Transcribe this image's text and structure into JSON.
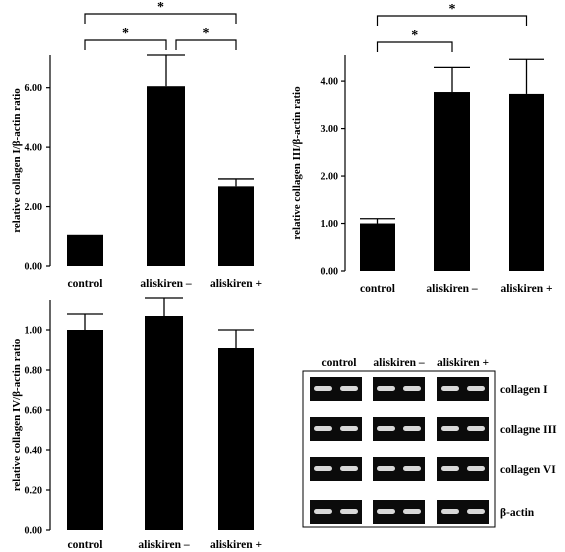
{
  "chart_data": [
    {
      "type": "bar",
      "categories": [
        "control",
        "aliskiren –",
        "aliskiren +"
      ],
      "values": [
        1.05,
        6.05,
        2.68
      ],
      "errors": [
        0.0,
        1.05,
        0.25
      ],
      "ylabel": "relative collagen I/β-actin ratio",
      "ylim": [
        0,
        7.1
      ],
      "yticks": [
        0,
        2,
        4,
        6
      ],
      "ytick_labels": [
        "0.00",
        "2.00",
        "4.00",
        "6.00"
      ],
      "significance": [
        {
          "from": 1,
          "to": 2,
          "label": "*",
          "level": 1
        },
        {
          "from": 0,
          "to": 1,
          "label": "*",
          "level": 1
        },
        {
          "from": 0,
          "to": 2,
          "label": "*",
          "level": 2
        }
      ]
    },
    {
      "type": "bar",
      "categories": [
        "control",
        "aliskiren –",
        "aliskiren +"
      ],
      "values": [
        1.0,
        3.77,
        3.73
      ],
      "errors": [
        0.1,
        0.52,
        0.73
      ],
      "ylabel": "relative collagen III/β-actin ratio",
      "ylim": [
        0,
        4.55
      ],
      "yticks": [
        0,
        1,
        2,
        3,
        4
      ],
      "ytick_labels": [
        "0.00",
        "1.00",
        "2.00",
        "3.00",
        "4.00"
      ],
      "significance": [
        {
          "from": 0,
          "to": 1,
          "label": "*",
          "level": 1
        },
        {
          "from": 0,
          "to": 2,
          "label": "*",
          "level": 2
        }
      ]
    },
    {
      "type": "bar",
      "categories": [
        "control",
        "aliskiren –",
        "aliskiren +"
      ],
      "values": [
        1.0,
        1.07,
        0.91
      ],
      "errors": [
        0.08,
        0.09,
        0.09
      ],
      "ylabel": "relative collagen IV/β-actin ratio",
      "ylim": [
        0,
        1.15
      ],
      "yticks": [
        0,
        0.2,
        0.4,
        0.6,
        0.8,
        1.0
      ],
      "ytick_labels": [
        "0.00",
        "0.20",
        "0.40",
        "0.60",
        "0.80",
        "1.00"
      ],
      "significance": []
    }
  ],
  "gel": {
    "lanes": [
      "control",
      "aliskiren –",
      "aliskiren +"
    ],
    "rows": [
      "collagen I",
      "collagne III",
      "collagen VI",
      "β-actin"
    ]
  }
}
